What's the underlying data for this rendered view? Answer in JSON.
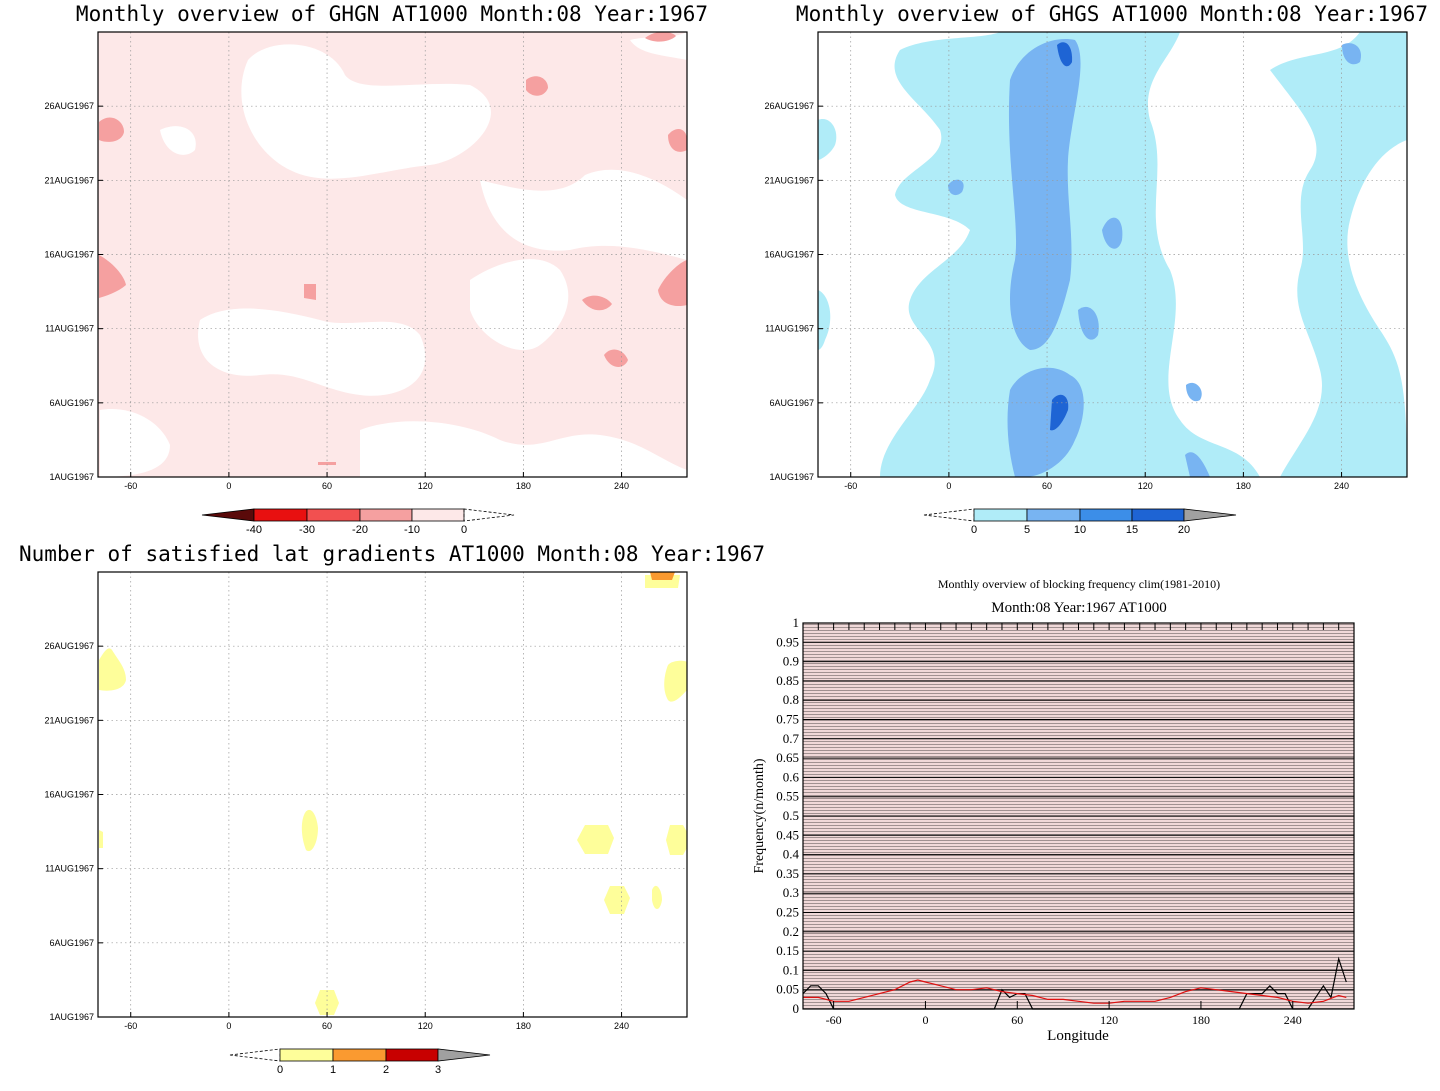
{
  "panels": {
    "ghgn": {
      "title": "Monthly overview of GHGN AT1000 Month:08 Year:1967",
      "colorbar_labels": [
        "-40",
        "-30",
        "-20",
        "-10",
        "0"
      ],
      "colorbar_colors": [
        "#5a0a0a",
        "#e81010",
        "#f25050",
        "#f5a0a0",
        "#fde8e8"
      ]
    },
    "ghgs": {
      "title": "Monthly overview of GHGS AT1000 Month:08 Year:1967",
      "colorbar_labels": [
        "0",
        "5",
        "10",
        "15",
        "20"
      ],
      "colorbar_colors": [
        "#b0ecf8",
        "#78b4f2",
        "#3c8ee8",
        "#1e64d4",
        "#a0a0a0"
      ]
    },
    "gradients": {
      "title": "Number of satisfied lat gradients AT1000 Month:08 Year:1967",
      "colorbar_labels": [
        "0",
        "1",
        "2",
        "3"
      ],
      "colorbar_colors": [
        "#fefe9a",
        "#fa9a30",
        "#c80000",
        "#a0a0a0"
      ]
    },
    "frequency": {
      "title": "Monthly overview of blocking frequency clim(1981-2010)",
      "subtitle": "Month:08 Year:1967  AT1000"
    }
  },
  "map_axes": {
    "lon_ticks": [
      "-60",
      "0",
      "60",
      "120",
      "180",
      "240"
    ],
    "lon_values": [
      -60,
      0,
      60,
      120,
      180,
      240
    ],
    "lon_range": [
      -80,
      280
    ],
    "date_ticks": [
      "1AUG1967",
      "6AUG1967",
      "11AUG1967",
      "16AUG1967",
      "21AUG1967",
      "26AUG1967"
    ],
    "date_values": [
      1,
      6,
      11,
      16,
      21,
      26
    ],
    "date_range": [
      1,
      31
    ]
  },
  "chart_data": [
    {
      "type": "heatmap",
      "title": "Monthly overview of GHGN AT1000 Month:08 Year:1967",
      "x_range": [
        -80,
        280
      ],
      "y_range": [
        "1AUG1967",
        "31AUG1967"
      ],
      "levels": [
        -40,
        -30,
        -20,
        -10,
        0
      ]
    },
    {
      "type": "heatmap",
      "title": "Monthly overview of GHGS AT1000 Month:08 Year:1967",
      "x_range": [
        -80,
        280
      ],
      "y_range": [
        "1AUG1967",
        "31AUG1967"
      ],
      "levels": [
        0,
        5,
        10,
        15,
        20
      ]
    },
    {
      "type": "heatmap",
      "title": "Number of satisfied lat gradients AT1000 Month:08 Year:1967",
      "x_range": [
        -80,
        280
      ],
      "y_range": [
        "1AUG1967",
        "31AUG1967"
      ],
      "levels": [
        0,
        1,
        2,
        3
      ]
    },
    {
      "type": "line",
      "title": "Monthly overview of blocking frequency clim(1981-2010)",
      "subtitle": "Month:08 Year:1967  AT1000",
      "xlabel": "Longitude",
      "ylabel": "Frequency(n/month)",
      "xlim": [
        -80,
        280
      ],
      "ylim": [
        0,
        1
      ],
      "x_ticks": [
        -60,
        0,
        60,
        120,
        180,
        240
      ],
      "y_ticks": [
        "0",
        "0.05",
        "0.1",
        "0.15",
        "0.2",
        "0.25",
        "0.3",
        "0.35",
        "0.4",
        "0.45",
        "0.5",
        "0.55",
        "0.6",
        "0.65",
        "0.7",
        "0.75",
        "0.8",
        "0.85",
        "0.9",
        "0.95",
        "1"
      ],
      "series": [
        {
          "color": "#000000",
          "x": [
            -80,
            -75,
            -70,
            -65,
            -60,
            -55,
            -50,
            -45,
            -40,
            -35,
            -30,
            40,
            45,
            50,
            55,
            60,
            65,
            70,
            75,
            205,
            210,
            215,
            220,
            225,
            230,
            235,
            240,
            245,
            250,
            255,
            260,
            265,
            270,
            275
          ],
          "y": [
            0.04,
            0.06,
            0.06,
            0.04,
            0.0,
            0.0,
            0.0,
            0.0,
            0.0,
            0.0,
            0.0,
            0.0,
            0.0,
            0.05,
            0.03,
            0.04,
            0.04,
            0.0,
            0.0,
            0.0,
            0.04,
            0.04,
            0.04,
            0.06,
            0.04,
            0.04,
            0.0,
            0.0,
            0.0,
            0.03,
            0.06,
            0.03,
            0.13,
            0.07
          ]
        },
        {
          "color": "#e01010",
          "x": [
            -80,
            -70,
            -60,
            -50,
            -40,
            -30,
            -20,
            -10,
            -5,
            0,
            10,
            20,
            30,
            40,
            50,
            60,
            70,
            80,
            90,
            100,
            110,
            120,
            130,
            140,
            150,
            160,
            170,
            180,
            190,
            200,
            210,
            220,
            230,
            240,
            250,
            260,
            270,
            275
          ],
          "y": [
            0.03,
            0.03,
            0.02,
            0.02,
            0.03,
            0.04,
            0.05,
            0.07,
            0.075,
            0.07,
            0.06,
            0.05,
            0.05,
            0.055,
            0.045,
            0.04,
            0.035,
            0.025,
            0.025,
            0.02,
            0.015,
            0.015,
            0.02,
            0.02,
            0.02,
            0.03,
            0.045,
            0.055,
            0.05,
            0.045,
            0.04,
            0.035,
            0.03,
            0.02,
            0.015,
            0.02,
            0.035,
            0.03
          ]
        }
      ]
    }
  ]
}
